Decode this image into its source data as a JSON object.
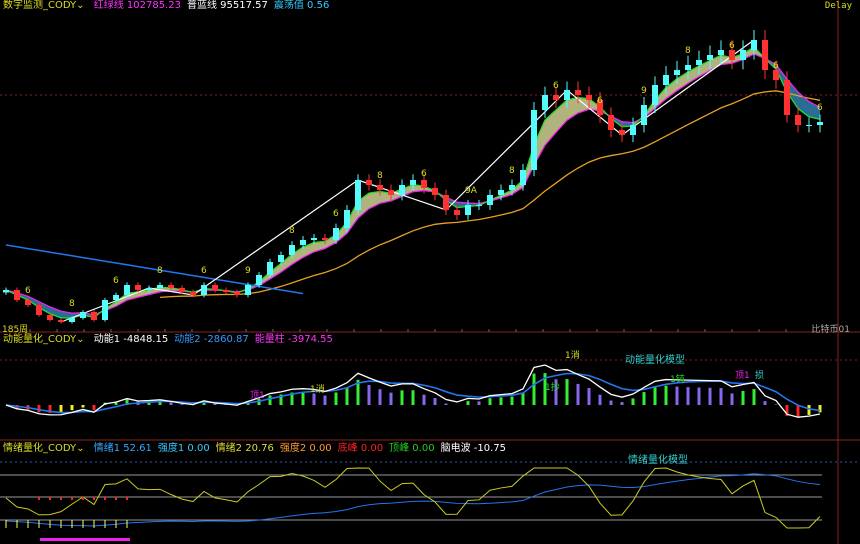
{
  "main": {
    "indicator_name": "数字监测_CODY",
    "dropdown_icon": "chevron-down-icon",
    "readouts": [
      {
        "label": "红绿线",
        "value": "102785.23",
        "color": "#ff33ff"
      },
      {
        "label": "普蓝线",
        "value": "95517.57",
        "color": "#ffffff"
      },
      {
        "label": "震荡值",
        "value": "0.56",
        "color": "#33ccff"
      }
    ],
    "status": "Delay",
    "period_label": "185周",
    "symbol_label": "比特币01"
  },
  "momentum": {
    "indicator_name": "动能量化_CODY",
    "readouts": [
      {
        "label": "动能1",
        "value": "-4848.15",
        "color": "#ffffff"
      },
      {
        "label": "动能2",
        "value": "-2860.87",
        "color": "#3399ff"
      },
      {
        "label": "能量柱",
        "value": "-3974.55",
        "color": "#ff33ff"
      }
    ],
    "model_label": "动能量化模型",
    "annotations": [
      "1消",
      "1钝",
      "顶1",
      "损",
      "1抄",
      "顶1",
      "1消"
    ]
  },
  "emotion": {
    "indicator_name": "情绪量化_CODY",
    "readouts": [
      {
        "label": "情绪1",
        "value": "52.61",
        "color": "#33aaff"
      },
      {
        "label": "强度1",
        "value": "0.00",
        "color": "#33ccff"
      },
      {
        "label": "情绪2",
        "value": "20.76",
        "color": "#dddd33"
      },
      {
        "label": "强度2",
        "value": "0.00",
        "color": "#ff9933"
      },
      {
        "label": "底峰",
        "value": "0.00",
        "color": "#ff2222"
      },
      {
        "label": "顶峰",
        "value": "0.00",
        "color": "#22cc22"
      },
      {
        "label": "脑电波",
        "value": "-10.75",
        "color": "#ffffff"
      }
    ],
    "model_label": "情绪量化模型"
  },
  "colors": {
    "up": "#54fcfc",
    "down": "#ff3232",
    "ma_fast": "#22dd22",
    "ma_mid": "#ee22ee",
    "ma_slow": "#e8a020",
    "ma_long": "#2277ee",
    "zigzag": "#ffffff"
  },
  "chart_data": {
    "type": "candlestick",
    "closes": [
      26083,
      22917,
      21333,
      18167,
      16583,
      15950,
      17217,
      19117,
      16583,
      22917,
      24500,
      27667,
      26083,
      26717,
      27667,
      26717,
      25450,
      24500,
      27667,
      26083,
      25450,
      24500,
      27667,
      30833,
      34950,
      37167,
      40333,
      41917,
      42550,
      41917,
      45717,
      51417,
      60917,
      59333,
      57750,
      56167,
      59333,
      60917,
      58383,
      56167,
      51417,
      49833,
      53000,
      53000,
      56167,
      57750,
      59333,
      64083,
      83083,
      87833,
      86250,
      89417,
      87833,
      86250,
      81500,
      76750,
      75167,
      78333,
      84667,
      91000,
      94167,
      95750,
      97333,
      98917,
      100500,
      102083,
      98917,
      102083,
      105250,
      95750,
      92583,
      81500,
      78333,
      78333,
      79283
    ],
    "zigzag_pivots": [
      5,
      13,
      17,
      32,
      40,
      51,
      56,
      68
    ],
    "signal_labels": [
      "6",
      "8",
      "6",
      "8",
      "6",
      "9",
      "8",
      "6",
      "8",
      "6",
      "9A",
      "8",
      "6",
      "6",
      "9",
      "8",
      "6",
      "6",
      "6"
    ],
    "price_range": [
      15000,
      110000
    ]
  }
}
